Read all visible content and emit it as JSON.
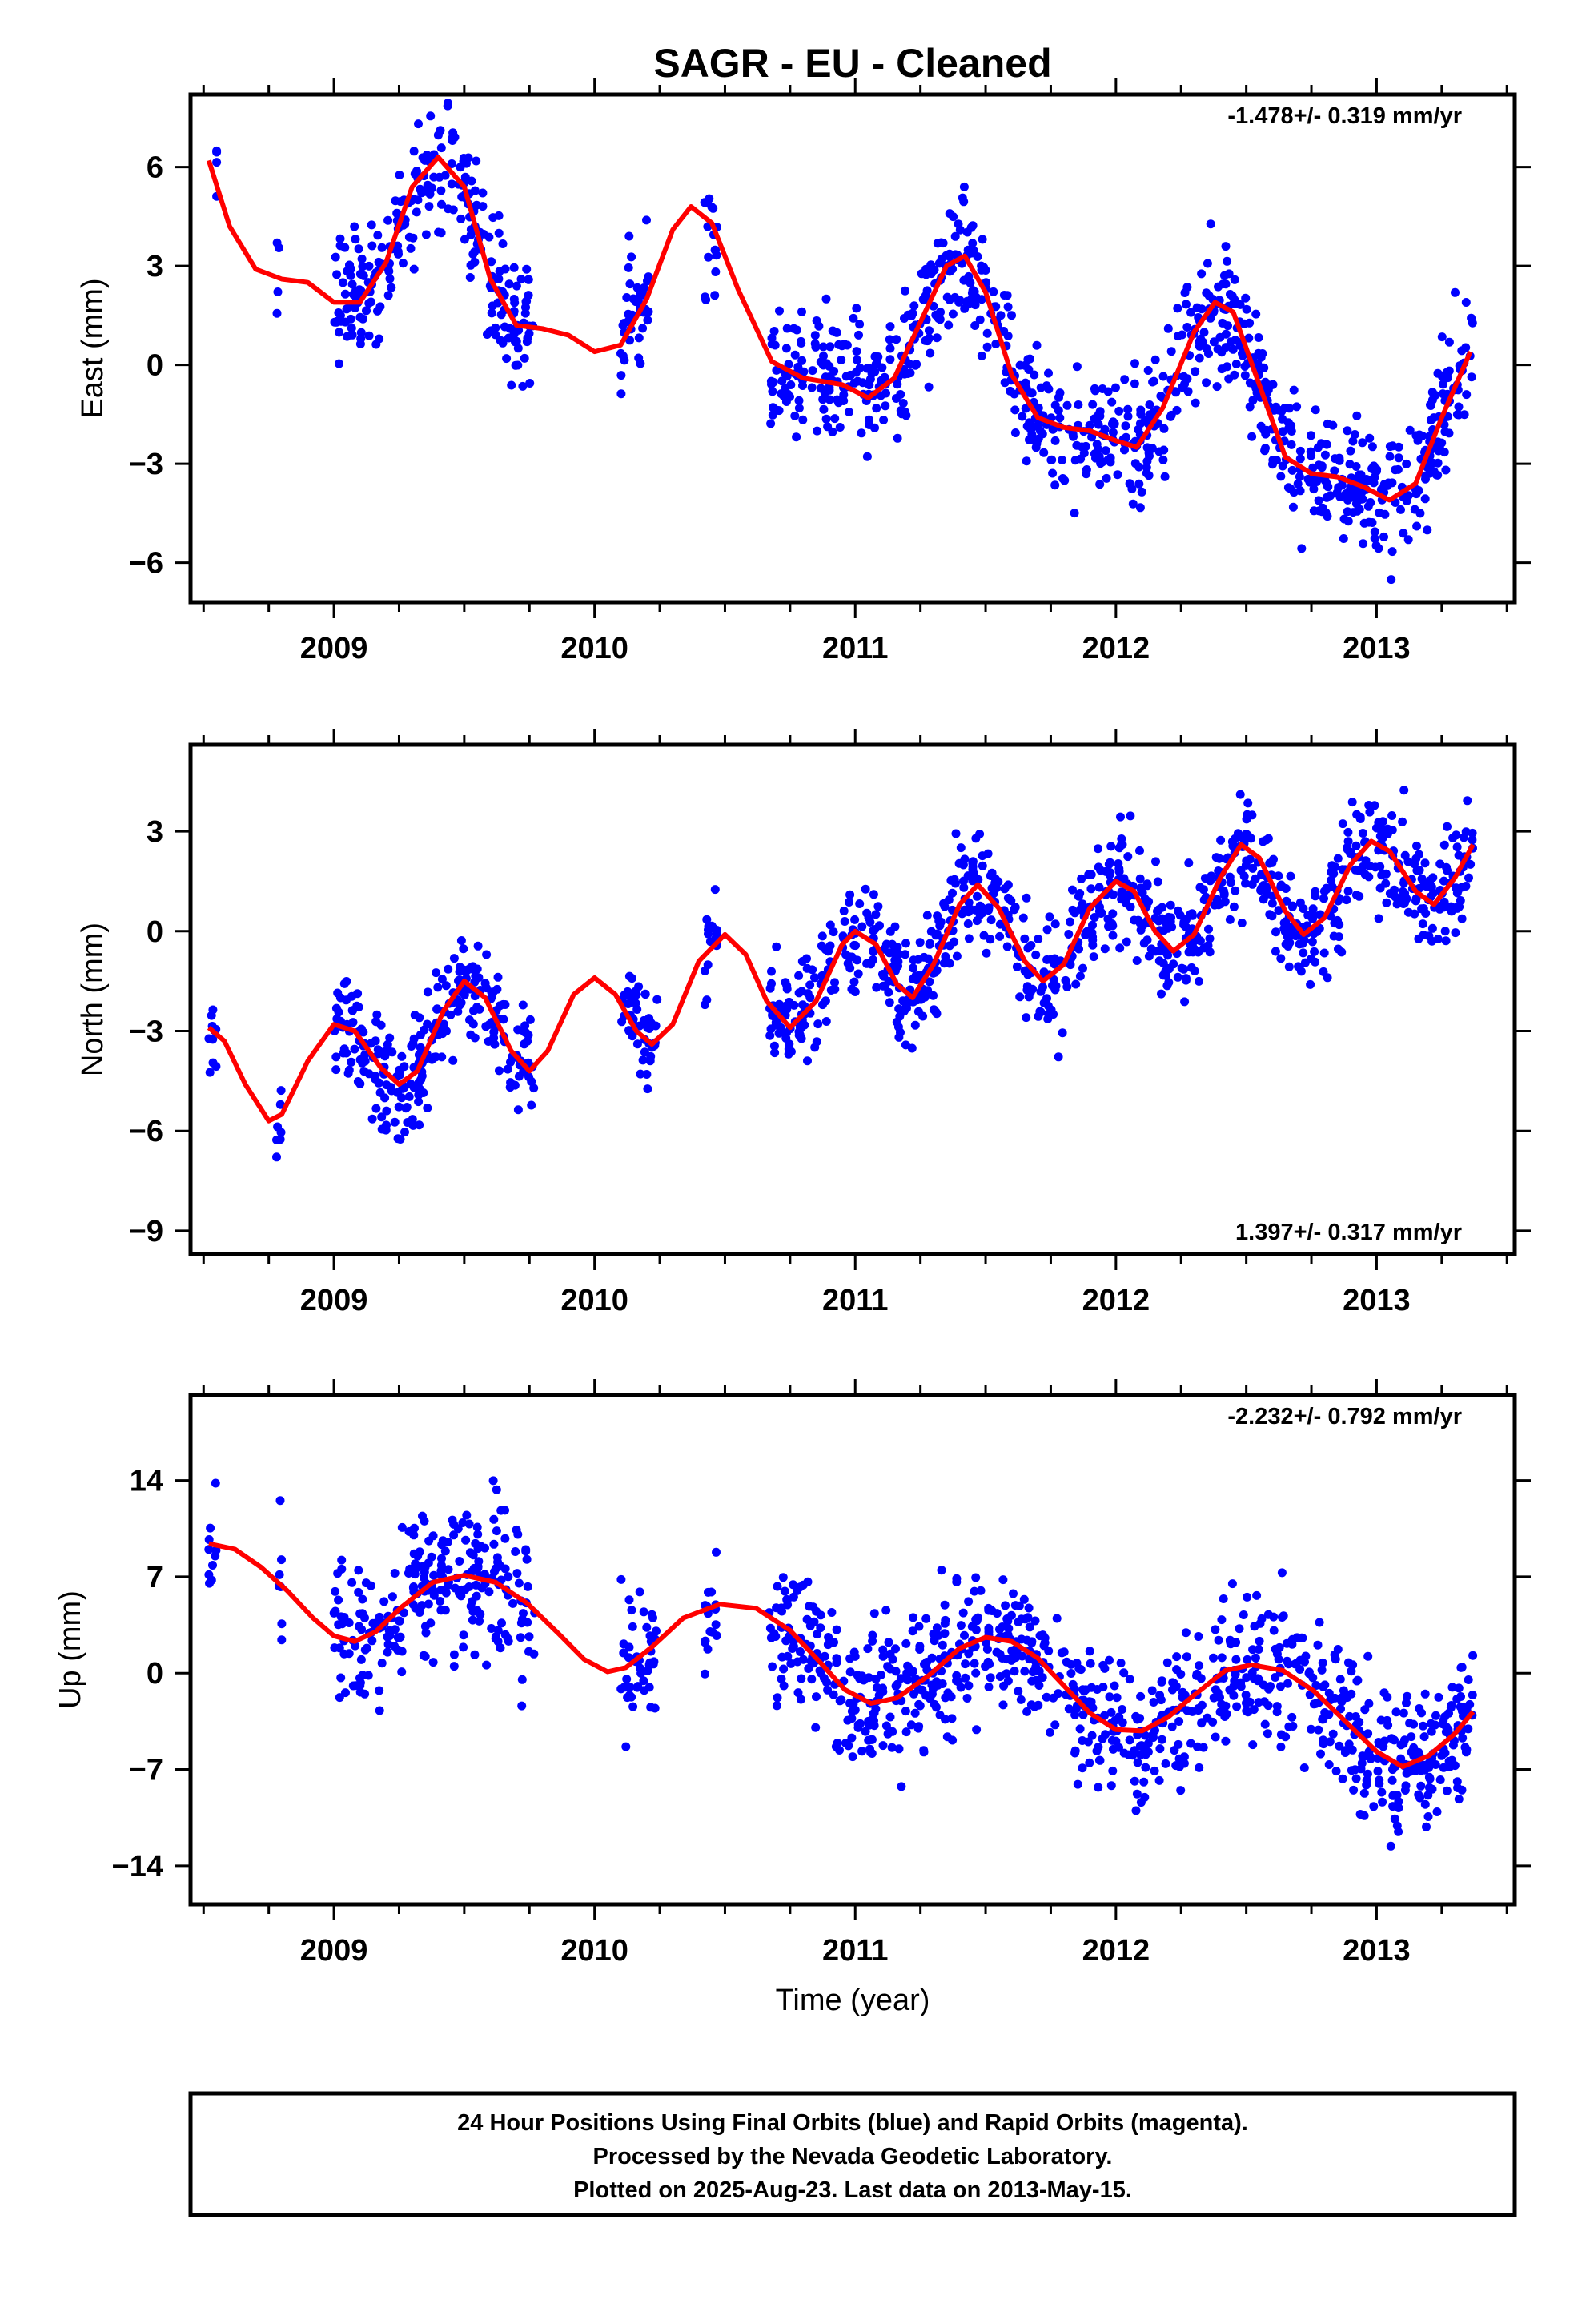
{
  "title": "SAGR  - EU - Cleaned",
  "xlabel": "Time (year)",
  "colors": {
    "points": "#0000ff",
    "fit": "#ff0000",
    "frame": "#000000"
  },
  "footer": {
    "line1": "24 Hour Positions Using Final Orbits (blue) and Rapid Orbits (magenta).",
    "line2": "Processed by the Nevada Geodetic Laboratory.",
    "line3": "Plotted on 2025-Aug-23. Last data on 2013-May-15."
  },
  "chart_data": [
    {
      "type": "scatter",
      "ylabel": "East (mm)",
      "rate_label": "-1.478+/- 0.319 mm/yr",
      "rate_position": "top-right",
      "xlim": [
        2008.45,
        2013.53
      ],
      "ylim": [
        -7.2,
        8.2
      ],
      "yticks": [
        6,
        3,
        0,
        -3,
        -6
      ],
      "xticks": [
        2009,
        2010,
        2011,
        2012,
        2013
      ],
      "segments": [
        [
          2008.55,
          2008.55
        ],
        [
          2008.78,
          2008.79
        ],
        [
          2009.0,
          2009.77
        ],
        [
          2010.1,
          2010.22
        ],
        [
          2010.42,
          2010.47
        ],
        [
          2010.67,
          2013.37
        ]
      ],
      "series": [
        {
          "kind": "points",
          "trend": [
            [
              2008.5,
              2.2
            ],
            [
              2009.0,
              2.1
            ],
            [
              2009.5,
              1.5
            ],
            [
              2010.0,
              1.0
            ],
            [
              2010.5,
              0.8
            ],
            [
              2011.0,
              0.3
            ],
            [
              2011.5,
              -0.3
            ],
            [
              2012.0,
              -1.2
            ],
            [
              2012.5,
              -2.3
            ],
            [
              2013.0,
              -3.0
            ],
            [
              2013.4,
              -2.9
            ]
          ],
          "amplitude": 2.2,
          "phase": 2009.4,
          "scatter_sd": 1.0
        },
        {
          "kind": "fit",
          "values": [
            [
              2008.52,
              6.2
            ],
            [
              2008.6,
              4.2
            ],
            [
              2008.7,
              2.9
            ],
            [
              2008.8,
              2.6
            ],
            [
              2008.9,
              2.5
            ],
            [
              2009.0,
              1.9
            ],
            [
              2009.1,
              1.9
            ],
            [
              2009.2,
              3.1
            ],
            [
              2009.3,
              5.4
            ],
            [
              2009.4,
              6.3
            ],
            [
              2009.5,
              5.4
            ],
            [
              2009.6,
              2.6
            ],
            [
              2009.7,
              1.2
            ],
            [
              2009.8,
              1.1
            ],
            [
              2009.9,
              0.9
            ],
            [
              2010.0,
              0.4
            ],
            [
              2010.1,
              0.6
            ],
            [
              2010.2,
              2.0
            ],
            [
              2010.3,
              4.1
            ],
            [
              2010.37,
              4.8
            ],
            [
              2010.45,
              4.3
            ],
            [
              2010.55,
              2.3
            ],
            [
              2010.68,
              0.1
            ],
            [
              2010.8,
              -0.4
            ],
            [
              2010.95,
              -0.6
            ],
            [
              2011.05,
              -1.0
            ],
            [
              2011.15,
              -0.4
            ],
            [
              2011.25,
              1.3
            ],
            [
              2011.35,
              3.0
            ],
            [
              2011.42,
              3.3
            ],
            [
              2011.5,
              2.2
            ],
            [
              2011.6,
              -0.3
            ],
            [
              2011.7,
              -1.6
            ],
            [
              2011.8,
              -1.9
            ],
            [
              2011.9,
              -2.0
            ],
            [
              2012.0,
              -2.3
            ],
            [
              2012.08,
              -2.5
            ],
            [
              2012.18,
              -1.3
            ],
            [
              2012.3,
              1.0
            ],
            [
              2012.38,
              1.9
            ],
            [
              2012.45,
              1.6
            ],
            [
              2012.55,
              -0.6
            ],
            [
              2012.65,
              -2.8
            ],
            [
              2012.75,
              -3.3
            ],
            [
              2012.85,
              -3.4
            ],
            [
              2012.95,
              -3.7
            ],
            [
              2013.05,
              -4.1
            ],
            [
              2013.15,
              -3.6
            ],
            [
              2013.25,
              -1.6
            ],
            [
              2013.36,
              0.4
            ]
          ]
        }
      ]
    },
    {
      "type": "scatter",
      "ylabel": "North (mm)",
      "rate_label": "1.397+/- 0.317 mm/yr",
      "rate_position": "bottom-right",
      "xlim": [
        2008.45,
        2013.53
      ],
      "ylim": [
        -9.7,
        5.6
      ],
      "yticks": [
        3,
        0,
        -3,
        -6,
        -9
      ],
      "xticks": [
        2009,
        2010,
        2011,
        2012,
        2013
      ],
      "segments": [
        [
          2008.52,
          2008.55
        ],
        [
          2008.78,
          2008.8
        ],
        [
          2009.0,
          2009.77
        ],
        [
          2010.1,
          2010.24
        ],
        [
          2010.42,
          2010.47
        ],
        [
          2010.67,
          2013.37
        ]
      ],
      "series": [
        {
          "kind": "points",
          "trend": [
            [
              2008.5,
              -5.4
            ],
            [
              2009.0,
              -5.0
            ],
            [
              2009.5,
              -3.5
            ],
            [
              2010.0,
              -2.5
            ],
            [
              2010.5,
              -1.8
            ],
            [
              2011.0,
              -0.9
            ],
            [
              2011.5,
              0.0
            ],
            [
              2012.0,
              0.4
            ],
            [
              2012.5,
              1.4
            ],
            [
              2013.0,
              2.0
            ],
            [
              2013.4,
              1.9
            ]
          ],
          "amplitude": 1.6,
          "phase": 2009.5,
          "scatter_sd": 0.85
        },
        {
          "kind": "fit",
          "values": [
            [
              2008.52,
              -2.9
            ],
            [
              2008.58,
              -3.3
            ],
            [
              2008.66,
              -4.6
            ],
            [
              2008.75,
              -5.7
            ],
            [
              2008.8,
              -5.5
            ],
            [
              2008.9,
              -3.9
            ],
            [
              2009.0,
              -2.8
            ],
            [
              2009.08,
              -3.0
            ],
            [
              2009.18,
              -4.1
            ],
            [
              2009.25,
              -4.6
            ],
            [
              2009.32,
              -4.2
            ],
            [
              2009.42,
              -2.4
            ],
            [
              2009.5,
              -1.5
            ],
            [
              2009.58,
              -2.0
            ],
            [
              2009.68,
              -3.6
            ],
            [
              2009.75,
              -4.2
            ],
            [
              2009.82,
              -3.6
            ],
            [
              2009.92,
              -1.9
            ],
            [
              2010.0,
              -1.4
            ],
            [
              2010.08,
              -1.9
            ],
            [
              2010.16,
              -3.0
            ],
            [
              2010.22,
              -3.4
            ],
            [
              2010.3,
              -2.8
            ],
            [
              2010.4,
              -0.9
            ],
            [
              2010.5,
              -0.1
            ],
            [
              2010.58,
              -0.7
            ],
            [
              2010.66,
              -2.1
            ],
            [
              2010.75,
              -2.9
            ],
            [
              2010.85,
              -2.1
            ],
            [
              2010.95,
              -0.4
            ],
            [
              2011.0,
              0.0
            ],
            [
              2011.08,
              -0.4
            ],
            [
              2011.16,
              -1.6
            ],
            [
              2011.22,
              -2.0
            ],
            [
              2011.3,
              -1.0
            ],
            [
              2011.4,
              0.8
            ],
            [
              2011.47,
              1.4
            ],
            [
              2011.55,
              0.7
            ],
            [
              2011.65,
              -0.9
            ],
            [
              2011.72,
              -1.5
            ],
            [
              2011.8,
              -1.0
            ],
            [
              2011.9,
              0.7
            ],
            [
              2012.0,
              1.5
            ],
            [
              2012.07,
              1.2
            ],
            [
              2012.15,
              0.0
            ],
            [
              2012.22,
              -0.6
            ],
            [
              2012.3,
              -0.1
            ],
            [
              2012.4,
              1.6
            ],
            [
              2012.48,
              2.6
            ],
            [
              2012.55,
              2.2
            ],
            [
              2012.65,
              0.6
            ],
            [
              2012.72,
              -0.1
            ],
            [
              2012.8,
              0.4
            ],
            [
              2012.9,
              2.0
            ],
            [
              2012.98,
              2.7
            ],
            [
              2013.05,
              2.4
            ],
            [
              2013.15,
              1.2
            ],
            [
              2013.22,
              0.8
            ],
            [
              2013.3,
              1.6
            ],
            [
              2013.37,
              2.6
            ]
          ]
        }
      ]
    },
    {
      "type": "scatter",
      "ylabel": "Up (mm)",
      "rate_label": "-2.232+/- 0.792 mm/yr",
      "rate_position": "top-right",
      "xlim": [
        2008.45,
        2013.53
      ],
      "ylim": [
        -16.8,
        20.2
      ],
      "yticks": [
        14,
        7,
        0,
        -7,
        -14
      ],
      "xticks": [
        2009,
        2010,
        2011,
        2012,
        2013
      ],
      "segments": [
        [
          2008.52,
          2008.55
        ],
        [
          2008.78,
          2008.8
        ],
        [
          2009.0,
          2009.77
        ],
        [
          2010.1,
          2010.24
        ],
        [
          2010.42,
          2010.47
        ],
        [
          2010.67,
          2013.37
        ]
      ],
      "series": [
        {
          "kind": "points",
          "trend": [
            [
              2008.5,
              7.5
            ],
            [
              2009.0,
              5.5
            ],
            [
              2009.5,
              4.2
            ],
            [
              2010.0,
              2.6
            ],
            [
              2010.5,
              2.0
            ],
            [
              2011.0,
              0.6
            ],
            [
              2011.5,
              -0.9
            ],
            [
              2012.0,
              -1.8
            ],
            [
              2012.5,
              -2.8
            ],
            [
              2013.0,
              -3.6
            ],
            [
              2013.4,
              -4.0
            ]
          ],
          "amplitude": 3.5,
          "phase": 2009.55,
          "scatter_sd": 2.6
        },
        {
          "kind": "fit",
          "values": [
            [
              2008.52,
              9.4
            ],
            [
              2008.62,
              9.0
            ],
            [
              2008.72,
              7.7
            ],
            [
              2008.82,
              6.0
            ],
            [
              2008.92,
              4.0
            ],
            [
              2009.0,
              2.7
            ],
            [
              2009.08,
              2.3
            ],
            [
              2009.16,
              3.0
            ],
            [
              2009.26,
              4.8
            ],
            [
              2009.38,
              6.6
            ],
            [
              2009.5,
              7.1
            ],
            [
              2009.62,
              6.6
            ],
            [
              2009.74,
              5.1
            ],
            [
              2009.86,
              2.9
            ],
            [
              2009.96,
              1.0
            ],
            [
              2010.05,
              0.1
            ],
            [
              2010.12,
              0.4
            ],
            [
              2010.22,
              1.9
            ],
            [
              2010.34,
              4.0
            ],
            [
              2010.48,
              5.0
            ],
            [
              2010.62,
              4.7
            ],
            [
              2010.75,
              3.1
            ],
            [
              2010.86,
              0.9
            ],
            [
              2010.96,
              -1.2
            ],
            [
              2011.06,
              -2.2
            ],
            [
              2011.16,
              -1.8
            ],
            [
              2011.28,
              -0.2
            ],
            [
              2011.4,
              1.8
            ],
            [
              2011.5,
              2.6
            ],
            [
              2011.6,
              2.3
            ],
            [
              2011.7,
              1.1
            ],
            [
              2011.8,
              -0.9
            ],
            [
              2011.9,
              -2.9
            ],
            [
              2012.0,
              -4.1
            ],
            [
              2012.1,
              -4.2
            ],
            [
              2012.2,
              -3.2
            ],
            [
              2012.3,
              -1.6
            ],
            [
              2012.42,
              0.2
            ],
            [
              2012.52,
              0.6
            ],
            [
              2012.64,
              0.2
            ],
            [
              2012.76,
              -1.3
            ],
            [
              2012.88,
              -3.5
            ],
            [
              2013.0,
              -5.7
            ],
            [
              2013.1,
              -6.8
            ],
            [
              2013.2,
              -6.0
            ],
            [
              2013.3,
              -4.4
            ],
            [
              2013.37,
              -2.8
            ]
          ]
        }
      ]
    }
  ]
}
